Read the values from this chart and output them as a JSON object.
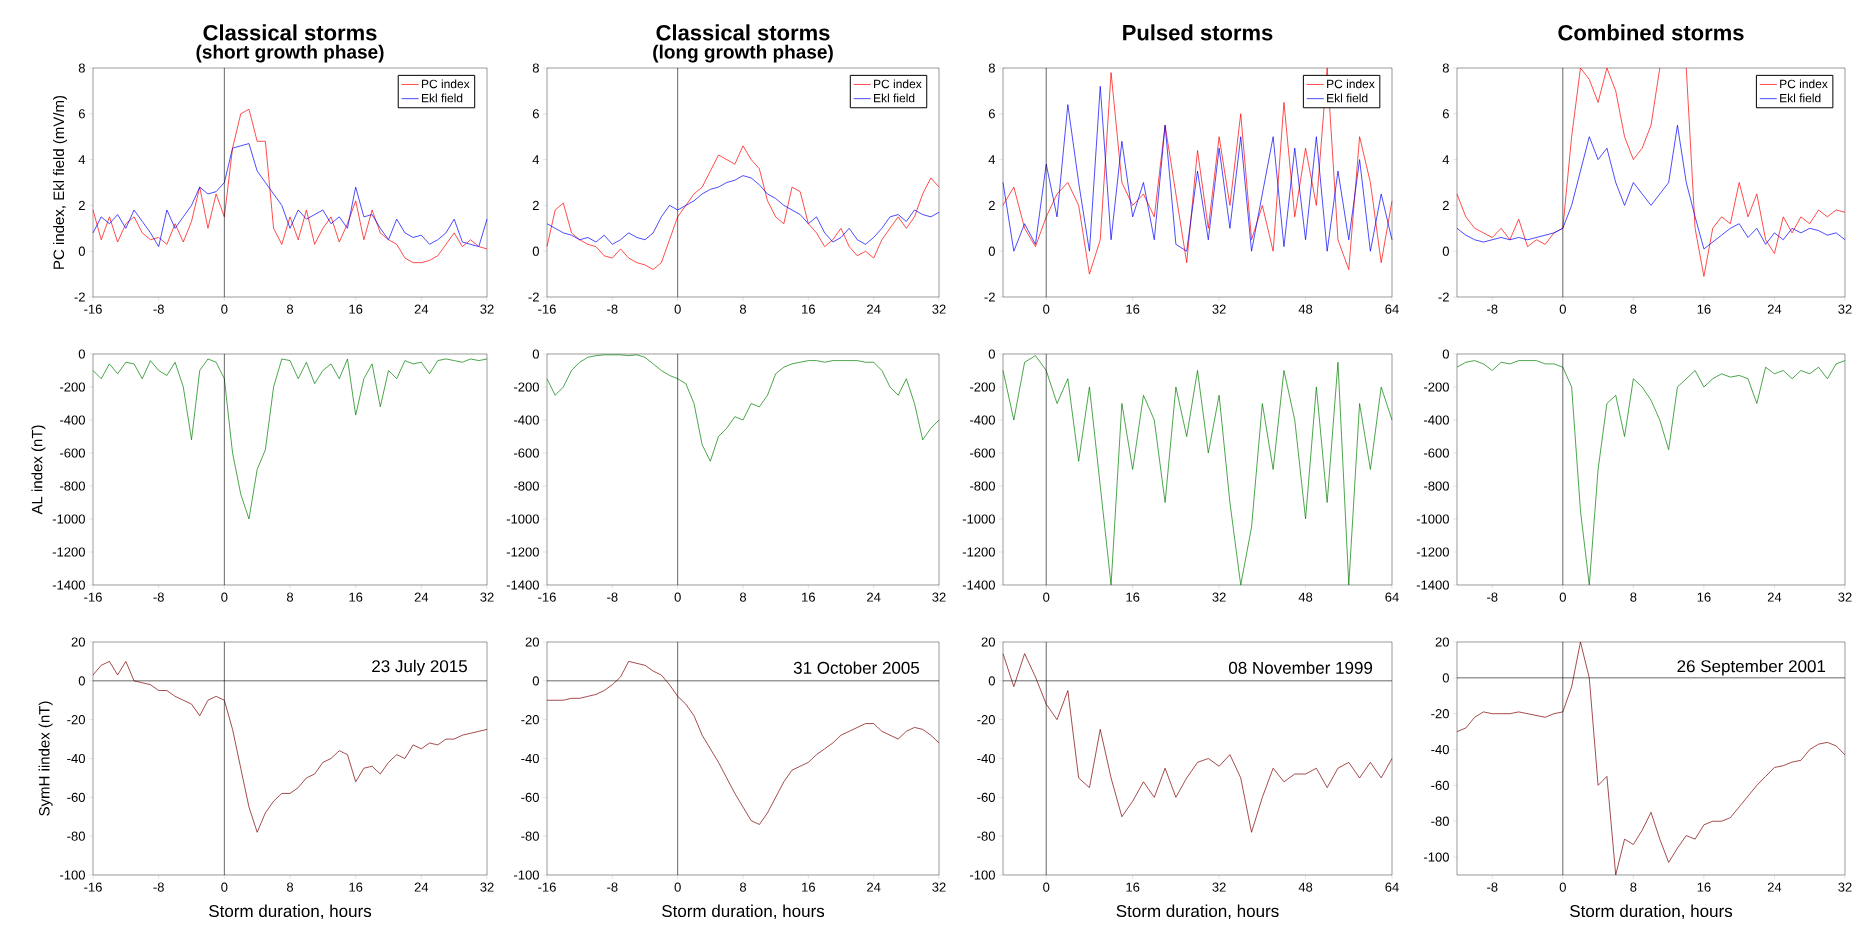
{
  "chart_data": [
    {
      "type": "line",
      "title": "Classical storms",
      "subtitle": "(short growth phase)",
      "ylabel": "PC index, Ekl field  (mV/m)",
      "legend": "top right",
      "x": [
        -16,
        -15,
        -14,
        -13,
        -12,
        -11,
        -10,
        -9,
        -8,
        -7,
        -6,
        -5,
        -4,
        -3,
        -2,
        -1,
        0,
        1,
        2,
        3,
        4,
        5,
        6,
        7,
        8,
        9,
        10,
        11,
        12,
        13,
        14,
        15,
        16,
        17,
        18,
        19,
        20,
        21,
        22,
        23,
        24,
        25,
        26,
        27,
        28,
        29,
        30,
        31,
        32
      ],
      "series": [
        {
          "name": "PC index",
          "color": "#ff0000",
          "values": [
            1.8,
            0.5,
            1.5,
            0.4,
            1.2,
            1.5,
            0.8,
            0.5,
            0.6,
            0.3,
            1.2,
            0.4,
            1.3,
            2.8,
            1.0,
            2.5,
            1.5,
            4.5,
            6.0,
            6.2,
            4.8,
            4.8,
            1.0,
            0.3,
            1.5,
            0.5,
            1.8,
            0.3,
            1.0,
            1.5,
            0.4,
            1.2,
            2.2,
            0.5,
            1.8,
            0.8,
            0.5,
            0.3,
            -0.3,
            -0.5,
            -0.5,
            -0.4,
            -0.2,
            0.3,
            0.8,
            0.2,
            0.5,
            0.2,
            0.1
          ]
        },
        {
          "name": "Ekl field",
          "color": "#0000ff",
          "values": [
            0.8,
            1.5,
            1.2,
            1.6,
            1.0,
            1.8,
            1.3,
            0.8,
            0.2,
            1.8,
            1.0,
            1.5,
            2.0,
            2.8,
            2.5,
            2.6,
            3.0,
            4.5,
            4.6,
            4.7,
            3.5,
            3.0,
            2.5,
            2.0,
            1.0,
            1.8,
            1.4,
            1.6,
            1.8,
            1.2,
            1.5,
            1.0,
            2.8,
            1.5,
            1.6,
            1.0,
            0.5,
            1.4,
            0.8,
            0.6,
            0.7,
            0.3,
            0.5,
            0.8,
            1.4,
            0.4,
            0.3,
            0.2,
            1.4
          ]
        }
      ],
      "xlim": [
        -16,
        32
      ],
      "xticks": [
        -16,
        -8,
        0,
        8,
        16,
        24,
        32
      ],
      "ylim": [
        -2,
        8
      ],
      "yticks": [
        -2,
        0,
        2,
        4,
        6,
        8
      ],
      "ref_lines": [
        {
          "axis": "x",
          "value": 0
        }
      ]
    },
    {
      "type": "line",
      "title": "Classical storms",
      "subtitle": "(long growth phase)",
      "legend": "top right",
      "x": [
        -16,
        -15,
        -14,
        -13,
        -12,
        -11,
        -10,
        -9,
        -8,
        -7,
        -6,
        -5,
        -4,
        -3,
        -2,
        -1,
        0,
        1,
        2,
        3,
        4,
        5,
        6,
        7,
        8,
        9,
        10,
        11,
        12,
        13,
        14,
        15,
        16,
        17,
        18,
        19,
        20,
        21,
        22,
        23,
        24,
        25,
        26,
        27,
        28,
        29,
        30,
        31,
        32
      ],
      "series": [
        {
          "name": "PC index",
          "color": "#ff0000",
          "values": [
            0.2,
            1.8,
            2.1,
            0.8,
            0.5,
            0.3,
            0.2,
            -0.2,
            -0.3,
            0.1,
            -0.3,
            -0.5,
            -0.6,
            -0.8,
            -0.5,
            0.5,
            1.5,
            2.0,
            2.5,
            2.8,
            3.5,
            4.2,
            4.0,
            3.8,
            4.6,
            4.0,
            3.6,
            2.2,
            1.5,
            1.2,
            2.8,
            2.6,
            1.2,
            0.8,
            0.2,
            0.5,
            1.0,
            0.2,
            -0.2,
            0.0,
            -0.3,
            0.5,
            1.0,
            1.5,
            1.0,
            1.5,
            2.5,
            3.2,
            2.8
          ]
        },
        {
          "name": "Ekl field",
          "color": "#0000ff",
          "values": [
            1.2,
            1.0,
            0.8,
            0.7,
            0.5,
            0.6,
            0.4,
            0.7,
            0.3,
            0.5,
            0.8,
            0.6,
            0.5,
            0.8,
            1.5,
            2.0,
            1.8,
            2.0,
            2.2,
            2.5,
            2.7,
            2.8,
            3.0,
            3.1,
            3.3,
            3.2,
            2.9,
            2.5,
            2.3,
            2.0,
            1.8,
            1.6,
            1.2,
            1.5,
            0.8,
            0.4,
            0.6,
            1.0,
            0.5,
            0.3,
            0.6,
            1.0,
            1.5,
            1.6,
            1.3,
            1.8,
            1.6,
            1.5,
            1.7
          ]
        }
      ],
      "xlim": [
        -16,
        32
      ],
      "xticks": [
        -16,
        -8,
        0,
        8,
        16,
        24,
        32
      ],
      "ylim": [
        -2,
        8
      ],
      "yticks": [
        -2,
        0,
        2,
        4,
        6,
        8
      ],
      "ref_lines": [
        {
          "axis": "x",
          "value": 0
        }
      ]
    },
    {
      "type": "line",
      "title": "Pulsed storms",
      "legend": "top right",
      "x": [
        -8,
        -6,
        -4,
        -2,
        0,
        2,
        4,
        6,
        8,
        10,
        12,
        14,
        16,
        18,
        20,
        22,
        24,
        26,
        28,
        30,
        32,
        34,
        36,
        38,
        40,
        42,
        44,
        46,
        48,
        50,
        52,
        54,
        56,
        58,
        60,
        62,
        64
      ],
      "series": [
        {
          "name": "PC index",
          "color": "#ff0000",
          "values": [
            2.0,
            2.8,
            1.0,
            0.2,
            1.5,
            2.5,
            3.0,
            2.0,
            -1.0,
            0.5,
            7.8,
            3.0,
            2.0,
            2.5,
            1.5,
            5.5,
            2.5,
            -0.5,
            4.4,
            1.0,
            5.0,
            2.0,
            6.0,
            0.5,
            2.0,
            0.0,
            6.5,
            1.5,
            4.5,
            2.0,
            8.0,
            0.5,
            -0.8,
            5.0,
            3.0,
            -0.5,
            2.2
          ]
        },
        {
          "name": "Ekl field",
          "color": "#0000ff",
          "values": [
            3.0,
            0.0,
            1.2,
            0.3,
            3.8,
            1.5,
            6.4,
            3.0,
            0.0,
            7.2,
            0.5,
            4.8,
            1.5,
            3.0,
            0.5,
            5.5,
            0.3,
            0.0,
            3.5,
            0.5,
            4.5,
            1.0,
            5.0,
            0.0,
            2.5,
            5.0,
            0.2,
            4.5,
            0.5,
            5.0,
            0.0,
            3.5,
            0.5,
            4.0,
            0.0,
            2.5,
            0.5
          ]
        }
      ],
      "xlim": [
        -8,
        64
      ],
      "xticks": [
        0,
        16,
        32,
        48,
        64
      ],
      "ylim": [
        -2,
        8
      ],
      "yticks": [
        -2,
        0,
        2,
        4,
        6,
        8
      ],
      "ref_lines": [
        {
          "axis": "x",
          "value": 0
        }
      ]
    },
    {
      "type": "line",
      "title": "Combined storms",
      "legend": "top right",
      "x": [
        -12,
        -11,
        -10,
        -9,
        -8,
        -7,
        -6,
        -5,
        -4,
        -3,
        -2,
        -1,
        0,
        1,
        2,
        3,
        4,
        5,
        6,
        7,
        8,
        9,
        10,
        11,
        12,
        13,
        14,
        15,
        16,
        17,
        18,
        19,
        20,
        21,
        22,
        23,
        24,
        25,
        26,
        27,
        28,
        29,
        30,
        31,
        32
      ],
      "series": [
        {
          "name": "PC index",
          "color": "#ff0000",
          "values": [
            2.5,
            1.5,
            1.0,
            0.8,
            0.6,
            1.0,
            0.5,
            1.4,
            0.2,
            0.5,
            0.3,
            0.8,
            1.0,
            5.0,
            8,
            7.5,
            6.5,
            8,
            7.0,
            5.0,
            4.0,
            4.5,
            5.5,
            8,
            null,
            null,
            8,
            1.0,
            -1.1,
            1.0,
            1.5,
            1.2,
            3.0,
            1.5,
            2.5,
            0.5,
            -0.1,
            1.5,
            0.8,
            1.5,
            1.2,
            1.8,
            1.5,
            1.8,
            1.7
          ]
        },
        {
          "name": "Ekl field",
          "color": "#0000ff",
          "values": [
            1.0,
            0.7,
            0.5,
            0.4,
            0.5,
            0.6,
            0.5,
            0.6,
            0.5,
            0.6,
            0.7,
            0.8,
            1.0,
            2.0,
            3.5,
            5.0,
            4.0,
            4.5,
            3.0,
            2.0,
            3.0,
            2.5,
            2.0,
            2.5,
            3.0,
            5.5,
            3.0,
            1.5,
            0.1,
            0.4,
            0.7,
            1.0,
            1.2,
            0.6,
            1.0,
            0.3,
            0.8,
            0.5,
            1.0,
            0.8,
            1.0,
            0.9,
            0.7,
            0.8,
            0.5
          ]
        }
      ],
      "xlim": [
        -12,
        32
      ],
      "xticks": [
        -8,
        0,
        8,
        16,
        24,
        32
      ],
      "ylim": [
        -2,
        8
      ],
      "yticks": [
        -2,
        0,
        2,
        4,
        6,
        8
      ],
      "ref_lines": [
        {
          "axis": "x",
          "value": 0
        }
      ]
    },
    {
      "type": "line",
      "ylabel": "AL index  (nT)",
      "x": [
        -16,
        -15,
        -14,
        -13,
        -12,
        -11,
        -10,
        -9,
        -8,
        -7,
        -6,
        -5,
        -4,
        -3,
        -2,
        -1,
        0,
        1,
        2,
        3,
        4,
        5,
        6,
        7,
        8,
        9,
        10,
        11,
        12,
        13,
        14,
        15,
        16,
        17,
        18,
        19,
        20,
        21,
        22,
        23,
        24,
        25,
        26,
        27,
        28,
        29,
        30,
        31,
        32
      ],
      "series": [
        {
          "color": "#008000",
          "values": [
            -100,
            -150,
            -60,
            -120,
            -50,
            -60,
            -150,
            -40,
            -100,
            -130,
            -50,
            -200,
            -520,
            -100,
            -30,
            -50,
            -150,
            -600,
            -850,
            -1000,
            -700,
            -580,
            -200,
            -30,
            -40,
            -150,
            -50,
            -180,
            -100,
            -60,
            -150,
            -30,
            -370,
            -150,
            -60,
            -320,
            -100,
            -150,
            -40,
            -60,
            -50,
            -120,
            -40,
            -30,
            -40,
            -50,
            -30,
            -40,
            -30
          ]
        }
      ],
      "xlim": [
        -16,
        32
      ],
      "xticks": [
        -16,
        -8,
        0,
        8,
        16,
        24,
        32
      ],
      "ylim": [
        -1400,
        0
      ],
      "yticks": [
        -1400,
        -1200,
        -1000,
        -800,
        -600,
        -400,
        -200,
        0
      ],
      "ref_lines": [
        {
          "axis": "x",
          "value": 0
        }
      ]
    },
    {
      "type": "line",
      "x": [
        -16,
        -15,
        -14,
        -13,
        -12,
        -11,
        -10,
        -9,
        -8,
        -7,
        -6,
        -5,
        -4,
        -3,
        -2,
        -1,
        0,
        1,
        2,
        3,
        4,
        5,
        6,
        7,
        8,
        9,
        10,
        11,
        12,
        13,
        14,
        15,
        16,
        17,
        18,
        19,
        20,
        21,
        22,
        23,
        24,
        25,
        26,
        27,
        28,
        29,
        30,
        31,
        32
      ],
      "series": [
        {
          "color": "#008000",
          "values": [
            -150,
            -250,
            -200,
            -100,
            -50,
            -20,
            -10,
            -5,
            -5,
            -5,
            -10,
            -5,
            -20,
            -60,
            -100,
            -130,
            -150,
            -180,
            -300,
            -550,
            -650,
            -500,
            -450,
            -380,
            -400,
            -300,
            -320,
            -250,
            -120,
            -80,
            -60,
            -50,
            -40,
            -40,
            -50,
            -40,
            -40,
            -40,
            -40,
            -50,
            -50,
            -100,
            -200,
            -250,
            -150,
            -300,
            -520,
            -450,
            -400
          ]
        }
      ],
      "xlim": [
        -16,
        32
      ],
      "xticks": [
        -16,
        -8,
        0,
        8,
        16,
        24,
        32
      ],
      "ylim": [
        -1400,
        0
      ],
      "yticks": [
        -1400,
        -1200,
        -1000,
        -800,
        -600,
        -400,
        -200,
        0
      ],
      "ref_lines": [
        {
          "axis": "x",
          "value": 0
        }
      ]
    },
    {
      "type": "line",
      "x": [
        -8,
        -6,
        -4,
        -2,
        0,
        2,
        4,
        6,
        8,
        10,
        12,
        14,
        16,
        18,
        20,
        22,
        24,
        26,
        28,
        30,
        32,
        34,
        36,
        38,
        40,
        42,
        44,
        46,
        48,
        50,
        52,
        54,
        56,
        58,
        60,
        62,
        64
      ],
      "series": [
        {
          "color": "#008000",
          "values": [
            -100,
            -400,
            -50,
            -10,
            -100,
            -300,
            -150,
            -650,
            -200,
            -800,
            -1400,
            -300,
            -700,
            -250,
            -400,
            -900,
            -200,
            -500,
            -100,
            -600,
            -250,
            -900,
            -1400,
            -1050,
            -300,
            -700,
            -100,
            -400,
            -1000,
            -200,
            -900,
            -50,
            -1400,
            -300,
            -700,
            -200,
            -400
          ]
        }
      ],
      "xlim": [
        -8,
        64
      ],
      "xticks": [
        0,
        16,
        32,
        48,
        64
      ],
      "ylim": [
        -1400,
        0
      ],
      "yticks": [
        -1400,
        -1200,
        -1000,
        -800,
        -600,
        -400,
        -200,
        0
      ],
      "ref_lines": [
        {
          "axis": "x",
          "value": 0
        }
      ]
    },
    {
      "type": "line",
      "x": [
        -12,
        -11,
        -10,
        -9,
        -8,
        -7,
        -6,
        -5,
        -4,
        -3,
        -2,
        -1,
        0,
        1,
        2,
        3,
        4,
        5,
        6,
        7,
        8,
        9,
        10,
        11,
        12,
        13,
        14,
        15,
        16,
        17,
        18,
        19,
        20,
        21,
        22,
        23,
        24,
        25,
        26,
        27,
        28,
        29,
        30,
        31,
        32
      ],
      "series": [
        {
          "color": "#008000",
          "values": [
            -80,
            -50,
            -40,
            -60,
            -100,
            -50,
            -60,
            -40,
            -40,
            -40,
            -60,
            -60,
            -80,
            -200,
            -950,
            -1400,
            -700,
            -300,
            -250,
            -500,
            -150,
            -200,
            -280,
            -400,
            -580,
            -200,
            -150,
            -100,
            -200,
            -150,
            -120,
            -140,
            -130,
            -150,
            -300,
            -80,
            -120,
            -100,
            -150,
            -100,
            -120,
            -80,
            -150,
            -60,
            -40
          ]
        }
      ],
      "xlim": [
        -12,
        32
      ],
      "xticks": [
        -8,
        0,
        8,
        16,
        24,
        32
      ],
      "ylim": [
        -1400,
        0
      ],
      "yticks": [
        -1400,
        -1200,
        -1000,
        -800,
        -600,
        -400,
        -200,
        0
      ],
      "ref_lines": [
        {
          "axis": "x",
          "value": 0
        }
      ]
    },
    {
      "type": "line",
      "ylabel": "SymH iindex  (nT)",
      "xlabel": "Storm  duration,  hours",
      "annotations": [
        "23 July 2015"
      ],
      "x": [
        -16,
        -15,
        -14,
        -13,
        -12,
        -11,
        -10,
        -9,
        -8,
        -7,
        -6,
        -5,
        -4,
        -3,
        -2,
        -1,
        0,
        1,
        2,
        3,
        4,
        5,
        6,
        7,
        8,
        9,
        10,
        11,
        12,
        13,
        14,
        15,
        16,
        17,
        18,
        19,
        20,
        21,
        22,
        23,
        24,
        25,
        26,
        27,
        28,
        29,
        30,
        31,
        32
      ],
      "series": [
        {
          "color": "#800000",
          "values": [
            3,
            8,
            10,
            3,
            10,
            0,
            -1,
            -2,
            -5,
            -5,
            -8,
            -10,
            -12,
            -18,
            -10,
            -8,
            -10,
            -25,
            -45,
            -65,
            -78,
            -68,
            -62,
            -58,
            -58,
            -55,
            -50,
            -48,
            -42,
            -40,
            -36,
            -38,
            -52,
            -45,
            -44,
            -48,
            -42,
            -38,
            -40,
            -33,
            -35,
            -32,
            -33,
            -30,
            -30,
            -28,
            -27,
            -26,
            -25
          ]
        }
      ],
      "xlim": [
        -16,
        32
      ],
      "xticks": [
        -16,
        -8,
        0,
        8,
        16,
        24,
        32
      ],
      "ylim": [
        -100,
        20
      ],
      "yticks": [
        -100,
        -80,
        -60,
        -40,
        -20,
        0,
        20
      ],
      "ref_lines": [
        {
          "axis": "x",
          "value": 0
        },
        {
          "axis": "y",
          "value": 0
        }
      ]
    },
    {
      "type": "line",
      "xlabel": "Storm  duration,  hours",
      "annotations": [
        "31 October 2005"
      ],
      "x": [
        -16,
        -15,
        -14,
        -13,
        -12,
        -11,
        -10,
        -9,
        -8,
        -7,
        -6,
        -5,
        -4,
        -3,
        -2,
        -1,
        0,
        1,
        2,
        3,
        4,
        5,
        6,
        7,
        8,
        9,
        10,
        11,
        12,
        13,
        14,
        15,
        16,
        17,
        18,
        19,
        20,
        21,
        22,
        23,
        24,
        25,
        26,
        27,
        28,
        29,
        30,
        31,
        32
      ],
      "series": [
        {
          "color": "#800000",
          "values": [
            -10,
            -10,
            -10,
            -9,
            -9,
            -8,
            -7,
            -5,
            -2,
            2,
            10,
            9,
            8,
            5,
            3,
            -2,
            -8,
            -12,
            -18,
            -28,
            -35,
            -42,
            -50,
            -58,
            -65,
            -72,
            -74,
            -68,
            -60,
            -52,
            -46,
            -44,
            -42,
            -38,
            -35,
            -32,
            -28,
            -26,
            -24,
            -22,
            -22,
            -26,
            -28,
            -30,
            -26,
            -24,
            -25,
            -28,
            -32
          ]
        }
      ],
      "xlim": [
        -16,
        32
      ],
      "xticks": [
        -16,
        -8,
        0,
        8,
        16,
        24,
        32
      ],
      "ylim": [
        -100,
        20
      ],
      "yticks": [
        -100,
        -80,
        -60,
        -40,
        -20,
        0,
        20
      ],
      "ref_lines": [
        {
          "axis": "x",
          "value": 0
        },
        {
          "axis": "y",
          "value": 0
        }
      ]
    },
    {
      "type": "line",
      "xlabel": "Storm  duration,  hours",
      "annotations": [
        "08 November 1999"
      ],
      "x": [
        -8,
        -6,
        -4,
        -2,
        0,
        2,
        4,
        6,
        8,
        10,
        12,
        14,
        16,
        18,
        20,
        22,
        24,
        26,
        28,
        30,
        32,
        34,
        36,
        38,
        40,
        42,
        44,
        46,
        48,
        50,
        52,
        54,
        56,
        58,
        60,
        62,
        64
      ],
      "series": [
        {
          "color": "#800000",
          "values": [
            14,
            -3,
            14,
            2,
            -12,
            -20,
            -5,
            -50,
            -55,
            -25,
            -50,
            -70,
            -62,
            -52,
            -60,
            -45,
            -60,
            -50,
            -42,
            -40,
            -44,
            -38,
            -50,
            -78,
            -60,
            -45,
            -52,
            -48,
            -48,
            -45,
            -55,
            -45,
            -42,
            -50,
            -42,
            -50,
            -40
          ]
        }
      ],
      "xlim": [
        -8,
        64
      ],
      "xticks": [
        0,
        16,
        32,
        48,
        64
      ],
      "ylim": [
        -100,
        20
      ],
      "yticks": [
        -100,
        -80,
        -60,
        -40,
        -20,
        0,
        20
      ],
      "ref_lines": [
        {
          "axis": "x",
          "value": 0
        },
        {
          "axis": "y",
          "value": 0
        }
      ]
    },
    {
      "type": "line",
      "xlabel": "Storm  duration,  hours",
      "annotations": [
        "26 September 2001"
      ],
      "x": [
        -12,
        -11,
        -10,
        -9,
        -8,
        -7,
        -6,
        -5,
        -4,
        -3,
        -2,
        -1,
        0,
        1,
        2,
        3,
        4,
        5,
        6,
        7,
        8,
        9,
        10,
        11,
        12,
        13,
        14,
        15,
        16,
        17,
        18,
        19,
        20,
        21,
        22,
        23,
        24,
        25,
        26,
        27,
        28,
        29,
        30,
        31,
        32
      ],
      "series": [
        {
          "color": "#800000",
          "values": [
            -30,
            -28,
            -22,
            -19,
            -20,
            -20,
            -20,
            -19,
            -20,
            -21,
            -22,
            -20,
            -19,
            -5,
            20,
            0,
            -60,
            -55,
            -110,
            -90,
            -93,
            -85,
            -75,
            -90,
            -103,
            -95,
            -88,
            -90,
            -82,
            -80,
            -80,
            -78,
            -72,
            -66,
            -60,
            -55,
            -50,
            -49,
            -47,
            -46,
            -40,
            -37,
            -36,
            -38,
            -43
          ]
        }
      ],
      "xlim": [
        -12,
        32
      ],
      "xticks": [
        -8,
        0,
        8,
        16,
        24,
        32
      ],
      "ylim": [
        -110,
        20
      ],
      "yticks": [
        -100,
        -80,
        -60,
        -40,
        -20,
        0,
        20
      ],
      "ref_lines": [
        {
          "axis": "x",
          "value": 0
        },
        {
          "axis": "y",
          "value": 0
        }
      ]
    }
  ]
}
